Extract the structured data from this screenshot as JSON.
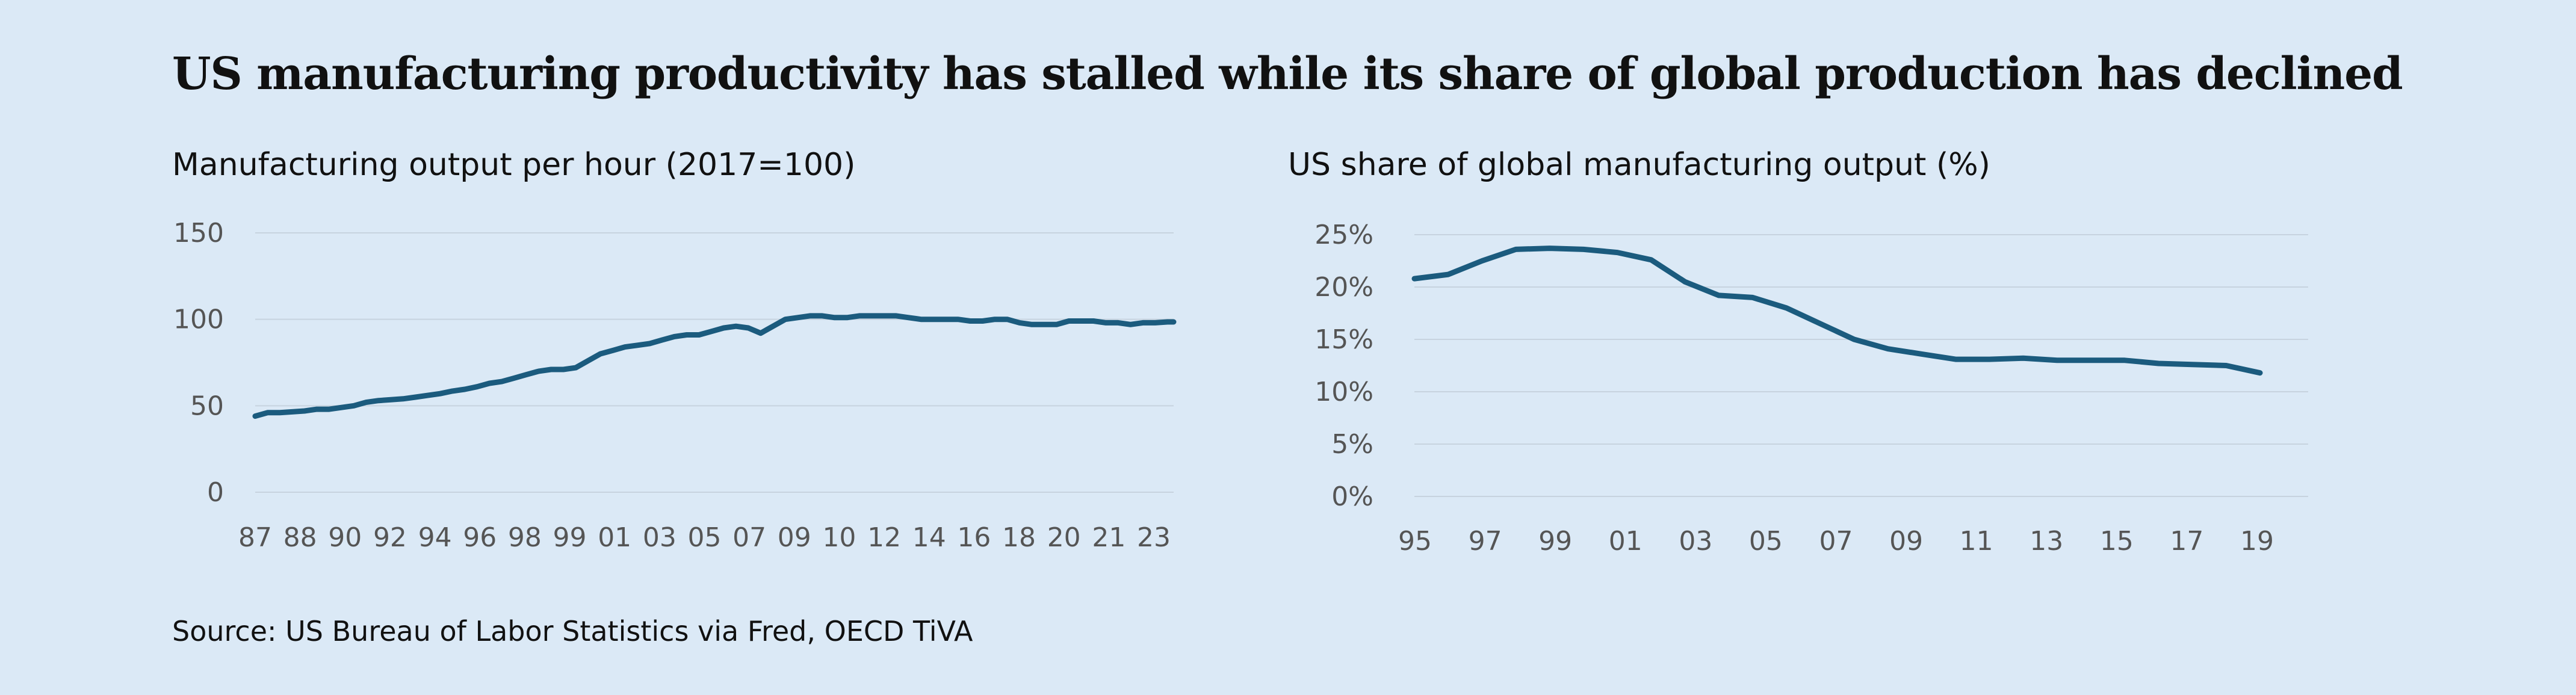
{
  "title": "US manufacturing productivity has stalled while its share of global production has declined",
  "source": "Source: US Bureau of Labor Statistics via Fred, OECD TiVA",
  "colors": {
    "background": "#dbe9f6",
    "line": "#1b5b7e",
    "grid": "#c7d3df",
    "tick_text": "#555555"
  },
  "chart_data": [
    {
      "type": "line",
      "title": "Manufacturing output per hour (2017=100)",
      "x_tick_labels": [
        "87",
        "88",
        "90",
        "92",
        "94",
        "96",
        "98",
        "99",
        "01",
        "03",
        "05",
        "07",
        "09",
        "10",
        "12",
        "14",
        "16",
        "18",
        "20",
        "21",
        "23"
      ],
      "y_tick_labels": [
        "0",
        "50",
        "100",
        "150"
      ],
      "ylim": [
        0,
        150
      ],
      "xlim": [
        1987,
        2024.25
      ],
      "grid": "horizontal",
      "series": [
        {
          "x": [
            1987,
            1987.5,
            1988,
            1988.5,
            1989,
            1989.5,
            1990,
            1990.5,
            1991,
            1991.5,
            1992,
            1992.5,
            1993,
            1993.5,
            1994,
            1994.5,
            1995,
            1995.5,
            1996,
            1996.5,
            1997,
            1997.5,
            1998,
            1998.5,
            1999,
            1999.5,
            2000,
            2000.5,
            2001,
            2001.5,
            2002,
            2002.5,
            2003,
            2003.5,
            2004,
            2004.5,
            2005,
            2005.5,
            2006,
            2006.5,
            2007,
            2007.5,
            2008,
            2008.5,
            2009,
            2009.5,
            2010,
            2010.5,
            2011,
            2011.5,
            2012,
            2012.5,
            2013,
            2013.5,
            2014,
            2014.5,
            2015,
            2015.5,
            2016,
            2016.5,
            2017,
            2017.5,
            2018,
            2018.5,
            2019,
            2019.5,
            2020,
            2020.5,
            2021,
            2021.5,
            2022,
            2022.5,
            2023,
            2023.5,
            2024,
            2024.25
          ],
          "values": [
            44,
            46,
            46,
            46.5,
            47,
            48,
            48,
            49,
            50,
            52,
            53,
            53.5,
            54,
            55,
            56,
            57,
            58.5,
            59.5,
            61,
            63,
            64,
            66,
            68,
            70,
            71,
            71,
            72,
            76,
            80,
            82,
            84,
            85,
            86,
            88,
            90,
            91,
            91,
            93,
            95,
            96,
            95,
            92,
            96,
            100,
            101,
            102,
            102,
            101,
            101,
            102,
            102,
            102,
            102,
            101,
            100,
            100,
            100,
            100,
            99,
            99,
            100,
            100,
            98,
            97,
            97,
            97,
            99,
            99,
            99,
            98,
            98,
            97,
            98,
            98,
            98.5,
            98.5
          ]
        }
      ]
    },
    {
      "type": "line",
      "title": "US share of global manufacturing output (%)",
      "x_tick_labels": [
        "95",
        "97",
        "99",
        "01",
        "03",
        "05",
        "07",
        "09",
        "11",
        "13",
        "15",
        "17",
        "19"
      ],
      "y_tick_labels": [
        "0%",
        "5%",
        "10%",
        "15%",
        "20%",
        "25%"
      ],
      "ylim": [
        0,
        25
      ],
      "xlim": [
        1995,
        2020
      ],
      "grid": "horizontal",
      "series": [
        {
          "x": [
            1995,
            1996,
            1997,
            1998,
            1999,
            2000,
            2001,
            2002,
            2003,
            2004,
            2005,
            2006,
            2007,
            2008,
            2009,
            2010,
            2011,
            2012,
            2013,
            2014,
            2015,
            2016,
            2017,
            2018,
            2019,
            2020
          ],
          "values": [
            20.8,
            21.2,
            22.5,
            23.6,
            23.7,
            23.6,
            23.3,
            22.6,
            20.5,
            19.2,
            19.0,
            18.0,
            16.5,
            15.0,
            14.1,
            13.6,
            13.1,
            13.1,
            13.2,
            13.0,
            13.0,
            13.0,
            12.7,
            12.6,
            12.5,
            11.8
          ]
        }
      ]
    }
  ]
}
